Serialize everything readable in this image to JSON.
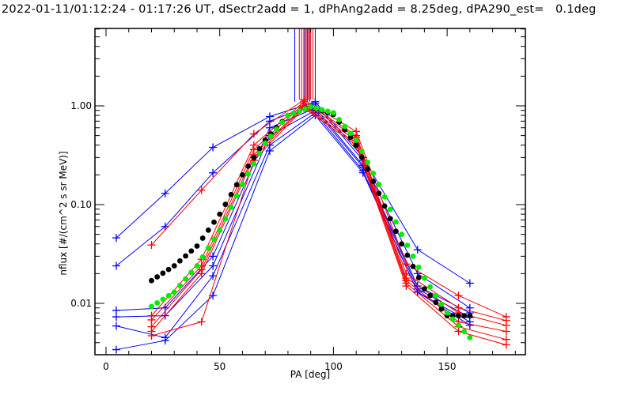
{
  "chart_data": {
    "type": "line",
    "title": "2022-01-11/01:12:24 - 01:17:26 UT, dSectr2add = 1, dPhAng2add = 8.25deg, dPA290_est=   0.1deg",
    "xlabel": "PA [deg]",
    "ylabel": "nflux [#/(cm^2 s sr MeV)]",
    "xlim": [
      -5,
      185
    ],
    "ylim": [
      0.003,
      6
    ],
    "yscale": "log",
    "xticks": [
      0,
      50,
      100,
      150
    ],
    "xtick_labels": [
      "0",
      "50",
      "100",
      "150"
    ],
    "yticks": [
      1.0,
      0.1,
      0.01
    ],
    "ytick_labels": [
      "1.00",
      "0.10",
      "0.01"
    ],
    "colors": {
      "blue": "#0000ff",
      "red": "#ff0000",
      "black": "#000000",
      "green": "#00ee00"
    },
    "series": [
      {
        "name": "blue-1",
        "color": "blue",
        "x": [
          4.5,
          26,
          47,
          72,
          92,
          113,
          137,
          160
        ],
        "y": [
          0.046,
          0.13,
          0.38,
          0.78,
          1.1,
          0.3,
          0.035,
          0.016
        ]
      },
      {
        "name": "blue-2",
        "color": "blue",
        "x": [
          4.5,
          26,
          47,
          72,
          92,
          113,
          137,
          160
        ],
        "y": [
          0.024,
          0.06,
          0.21,
          0.7,
          1.05,
          0.28,
          0.02,
          0.009
        ]
      },
      {
        "name": "blue-3",
        "color": "blue",
        "x": [
          4.5,
          26,
          47,
          72,
          92,
          113,
          137,
          160
        ],
        "y": [
          0.0085,
          0.009,
          0.03,
          0.6,
          0.95,
          0.25,
          0.015,
          0.008
        ]
      },
      {
        "name": "blue-4",
        "color": "blue",
        "x": [
          4.5,
          26,
          47,
          72,
          92,
          113,
          137,
          160
        ],
        "y": [
          0.0073,
          0.0075,
          0.024,
          0.5,
          0.9,
          0.24,
          0.014,
          0.0072
        ]
      },
      {
        "name": "blue-5",
        "color": "blue",
        "x": [
          4.5,
          26,
          47,
          72,
          92,
          113,
          137,
          160
        ],
        "y": [
          0.0059,
          0.0045,
          0.019,
          0.4,
          0.85,
          0.22,
          0.013,
          0.0065
        ]
      },
      {
        "name": "blue-6",
        "color": "blue",
        "x": [
          4.5,
          26,
          47,
          72,
          92,
          113,
          137,
          160
        ],
        "y": [
          0.0034,
          0.0042,
          0.012,
          0.35,
          0.8,
          0.21,
          0.013,
          0.006
        ]
      },
      {
        "name": "red-1",
        "color": "red",
        "x": [
          20,
          42,
          65,
          87,
          110,
          132,
          155,
          176
        ],
        "y": [
          0.039,
          0.14,
          0.52,
          1.15,
          0.55,
          0.025,
          0.012,
          0.0073
        ]
      },
      {
        "name": "red-2",
        "color": "red",
        "x": [
          20,
          42,
          65,
          87,
          110,
          132,
          155,
          176
        ],
        "y": [
          0.0075,
          0.028,
          0.4,
          1.1,
          0.5,
          0.02,
          0.009,
          0.0067
        ]
      },
      {
        "name": "red-3",
        "color": "red",
        "x": [
          20,
          42,
          65,
          87,
          110,
          132,
          155,
          176
        ],
        "y": [
          0.0068,
          0.024,
          0.36,
          1.05,
          0.48,
          0.018,
          0.008,
          0.006
        ]
      },
      {
        "name": "red-4",
        "color": "red",
        "x": [
          20,
          42,
          65,
          87,
          110,
          132,
          155,
          176
        ],
        "y": [
          0.0058,
          0.022,
          0.32,
          1.0,
          0.45,
          0.017,
          0.0065,
          0.0052
        ]
      },
      {
        "name": "red-5",
        "color": "red",
        "x": [
          20,
          42,
          65,
          87,
          110,
          132,
          155,
          176
        ],
        "y": [
          0.0052,
          0.02,
          0.3,
          0.98,
          0.42,
          0.016,
          0.0058,
          0.0043
        ]
      },
      {
        "name": "red-6",
        "color": "red",
        "x": [
          20,
          42,
          65,
          87,
          110,
          132,
          155,
          176
        ],
        "y": [
          0.0047,
          0.0065,
          0.28,
          0.95,
          0.4,
          0.015,
          0.0052,
          0.0038
        ]
      },
      {
        "name": "black-fit",
        "color": "black",
        "style": "dots",
        "x": [
          20,
          30,
          40,
          50,
          60,
          70,
          80,
          90,
          100,
          110,
          120,
          130,
          140,
          150,
          160
        ],
        "y": [
          0.017,
          0.024,
          0.038,
          0.08,
          0.2,
          0.45,
          0.8,
          0.98,
          0.82,
          0.4,
          0.13,
          0.04,
          0.014,
          0.0075,
          0.0075
        ]
      },
      {
        "name": "green-fit",
        "color": "green",
        "style": "dots",
        "x": [
          20,
          30,
          40,
          50,
          60,
          70,
          80,
          90,
          100,
          110,
          120,
          130,
          140,
          150,
          160
        ],
        "y": [
          0.0093,
          0.013,
          0.024,
          0.055,
          0.16,
          0.42,
          0.8,
          0.98,
          0.85,
          0.45,
          0.16,
          0.05,
          0.018,
          0.008,
          0.0045
        ]
      }
    ]
  }
}
